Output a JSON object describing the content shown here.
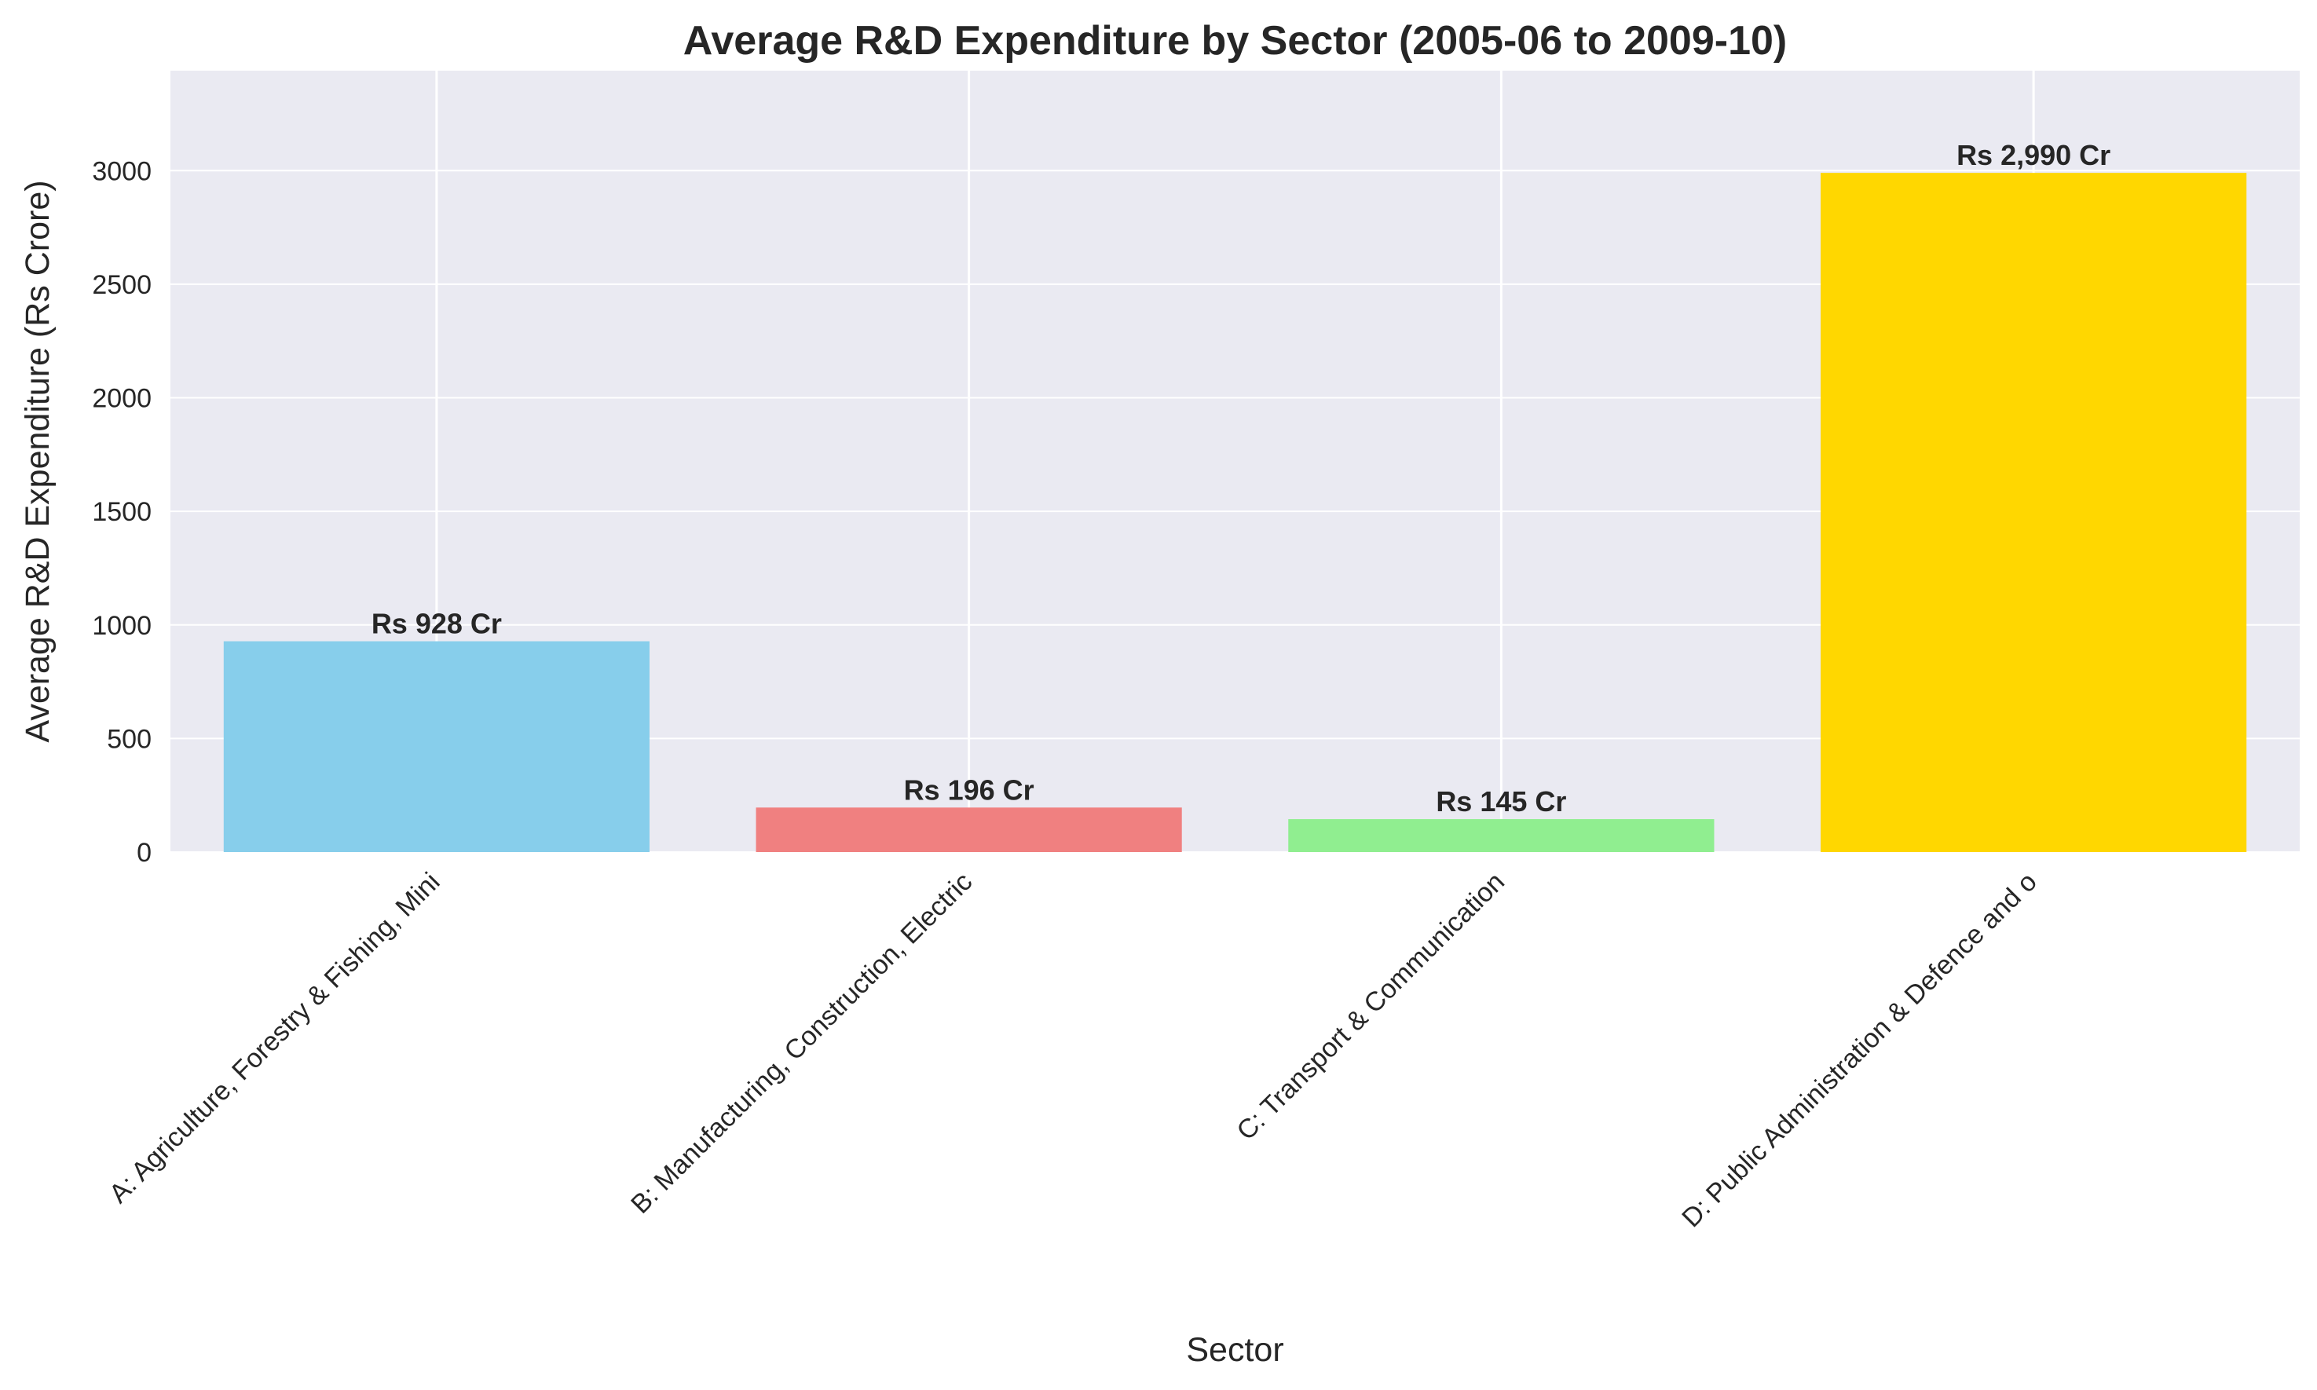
{
  "chart_data": {
    "type": "bar",
    "title": "Average R&D Expenditure by Sector (2005-06 to 2009-10)",
    "xlabel": "Sector",
    "ylabel": "Average R&D Expenditure (Rs Crore)",
    "categories": [
      "A: Agriculture, Forestry & Fishing, Mini",
      "B: Manufacturing, Construction, Electric",
      "C: Transport & Communication",
      "D: Public Administration & Defence and o"
    ],
    "values": [
      928,
      196,
      145,
      2990
    ],
    "data_labels": [
      "Rs 928 Cr",
      "Rs 196 Cr",
      "Rs 145 Cr",
      "Rs 2,990 Cr"
    ],
    "colors": [
      "#87ceeb",
      "#f08080",
      "#90ee90",
      "#ffd700"
    ],
    "ylim": [
      0,
      3440
    ],
    "yticks": [
      0,
      500,
      1000,
      1500,
      2000,
      2500,
      3000
    ],
    "ytick_labels": [
      "0",
      "500",
      "1000",
      "1500",
      "2000",
      "2500",
      "3000"
    ],
    "grid": true,
    "background": "#eaeaf2",
    "grid_color": "#ffffff"
  }
}
